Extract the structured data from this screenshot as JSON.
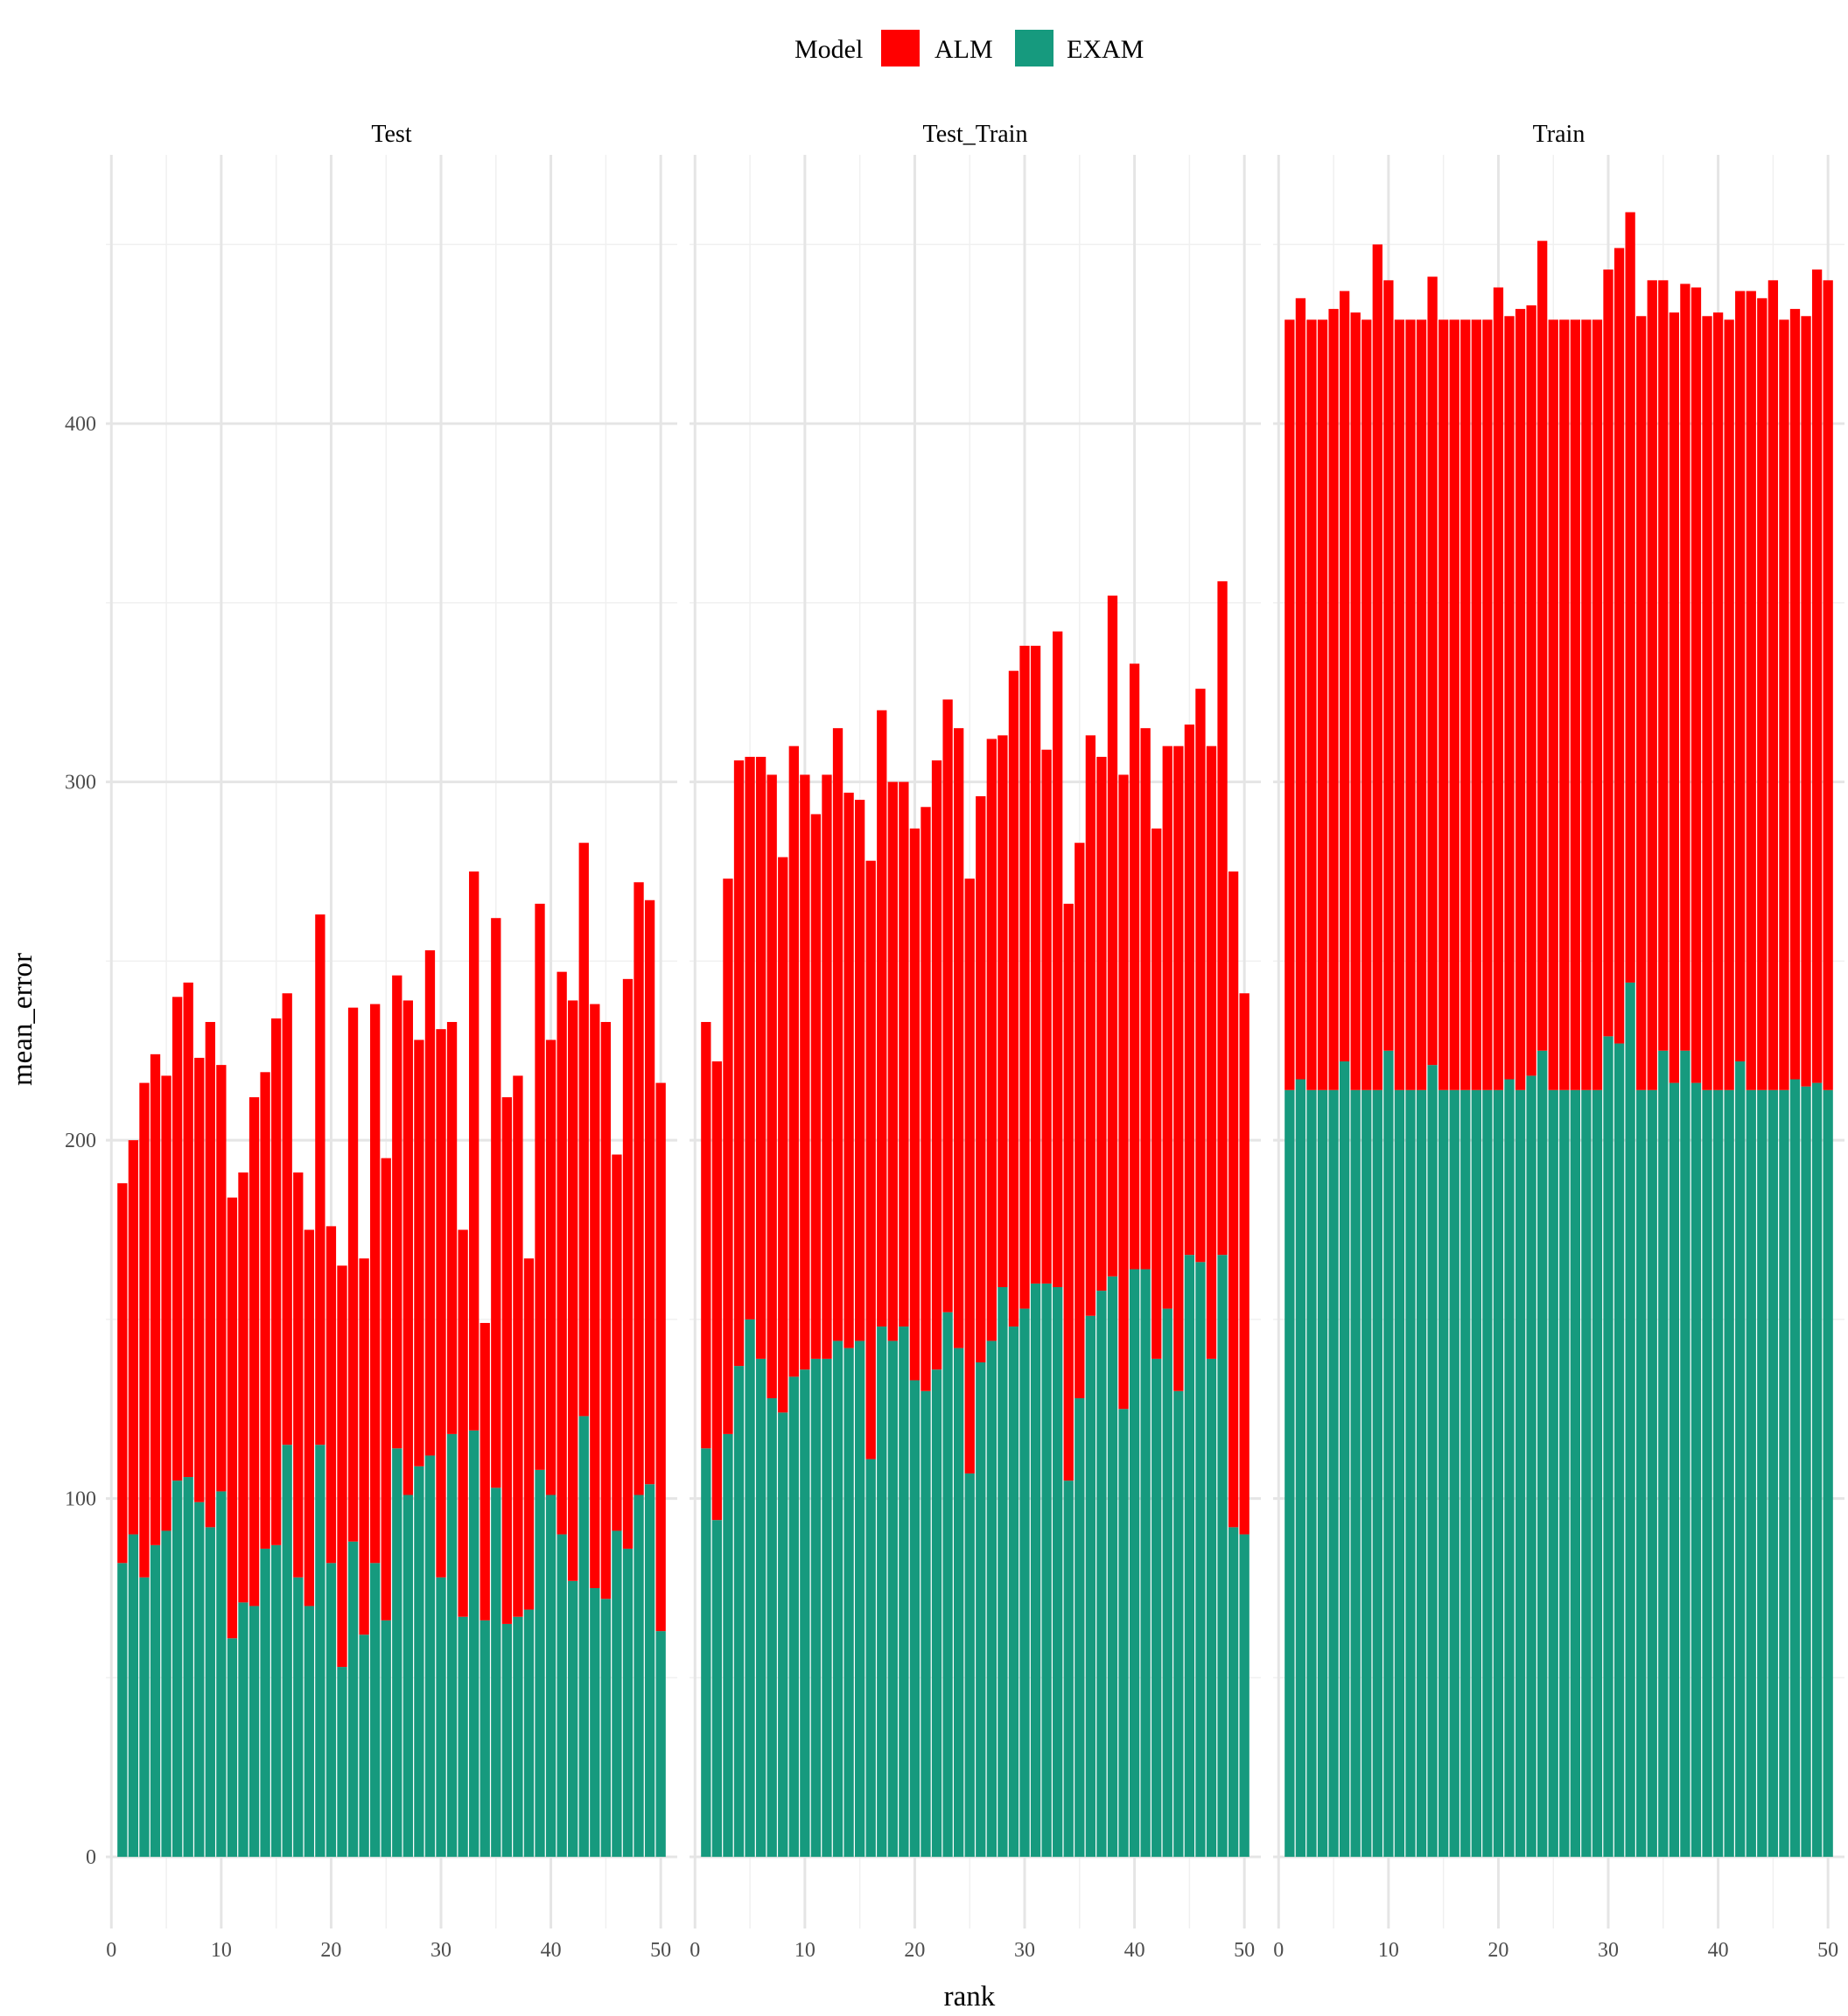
{
  "chart_data": {
    "type": "bar",
    "stacked": true,
    "xlabel": "rank",
    "ylabel": "mean_error",
    "ylim": [
      -20,
      475
    ],
    "xlim": [
      -0.5,
      51.5
    ],
    "y_ticks": [
      0,
      100,
      200,
      300,
      400
    ],
    "x_ticks": [
      0,
      10,
      20,
      30,
      40,
      50
    ],
    "legend": {
      "title": "Model",
      "position": "top",
      "entries": [
        {
          "name": "ALM",
          "color": "#ff0000"
        },
        {
          "name": "EXAM",
          "color": "#169a7e"
        }
      ]
    },
    "grid": true,
    "x": [
      1,
      2,
      3,
      4,
      5,
      6,
      7,
      8,
      9,
      10,
      11,
      12,
      13,
      14,
      15,
      16,
      17,
      18,
      19,
      20,
      21,
      22,
      23,
      24,
      25,
      26,
      27,
      28,
      29,
      30,
      31,
      32,
      33,
      34,
      35,
      36,
      37,
      38,
      39,
      40,
      41,
      42,
      43,
      44,
      45,
      46,
      47,
      48,
      49,
      50
    ],
    "panels": [
      {
        "title": "Test",
        "series": [
          {
            "name": "EXAM",
            "values": [
              82,
              90,
              78,
              87,
              91,
              105,
              106,
              99,
              92,
              102,
              61,
              71,
              70,
              86,
              87,
              115,
              78,
              70,
              115,
              82,
              53,
              88,
              62,
              82,
              66,
              114,
              101,
              109,
              112,
              78,
              118,
              67,
              119,
              66,
              103,
              65,
              67,
              69,
              108,
              101,
              90,
              77,
              123,
              75,
              72,
              91,
              86,
              101,
              104,
              63
            ]
          },
          {
            "name": "ALM",
            "values": [
              106,
              110,
              138,
              137,
              127,
              135,
              138,
              124,
              141,
              119,
              123,
              120,
              142,
              133,
              147,
              126,
              113,
              105,
              148,
              94,
              112,
              149,
              105,
              156,
              129,
              132,
              138,
              119,
              141,
              153,
              115,
              108,
              156,
              83,
              159,
              147,
              151,
              98,
              158,
              127,
              157,
              162,
              160,
              163,
              161,
              105,
              159,
              171,
              163,
              153
            ]
          }
        ]
      },
      {
        "title": "Test_Train",
        "series": [
          {
            "name": "EXAM",
            "values": [
              114,
              94,
              118,
              137,
              150,
              139,
              128,
              124,
              134,
              136,
              139,
              139,
              144,
              142,
              144,
              111,
              148,
              144,
              148,
              133,
              130,
              136,
              152,
              142,
              107,
              138,
              144,
              159,
              148,
              153,
              160,
              160,
              159,
              105,
              128,
              151,
              158,
              162,
              125,
              164,
              164,
              139,
              153,
              130,
              168,
              166,
              139,
              168,
              92,
              90
            ]
          },
          {
            "name": "ALM",
            "values": [
              119,
              128,
              155,
              169,
              157,
              168,
              174,
              155,
              176,
              166,
              152,
              163,
              171,
              155,
              151,
              167,
              172,
              156,
              152,
              154,
              163,
              170,
              171,
              173,
              166,
              158,
              168,
              154,
              183,
              185,
              178,
              149,
              183,
              161,
              155,
              162,
              149,
              190,
              177,
              169,
              151,
              148,
              157,
              180,
              148,
              160,
              171,
              188,
              183,
              151
            ]
          }
        ]
      },
      {
        "title": "Train",
        "series": [
          {
            "name": "EXAM",
            "values": [
              214,
              217,
              214,
              214,
              214,
              222,
              214,
              214,
              214,
              225,
              214,
              214,
              214,
              221,
              214,
              214,
              214,
              214,
              214,
              214,
              217,
              214,
              218,
              225,
              214,
              214,
              214,
              214,
              214,
              229,
              227,
              244,
              214,
              214,
              225,
              216,
              225,
              216,
              214,
              214,
              214,
              222,
              214,
              214,
              214,
              214,
              217,
              215,
              216,
              214
            ]
          },
          {
            "name": "ALM",
            "values": [
              215,
              218,
              215,
              215,
              218,
              215,
              217,
              215,
              236,
              215,
              215,
              215,
              215,
              220,
              215,
              215,
              215,
              215,
              215,
              224,
              213,
              218,
              215,
              226,
              215,
              215,
              215,
              215,
              215,
              214,
              222,
              215,
              216,
              226,
              215,
              215,
              214,
              222,
              216,
              217,
              215,
              215,
              223,
              221,
              226,
              215,
              215,
              215,
              227,
              226
            ]
          }
        ]
      }
    ]
  }
}
